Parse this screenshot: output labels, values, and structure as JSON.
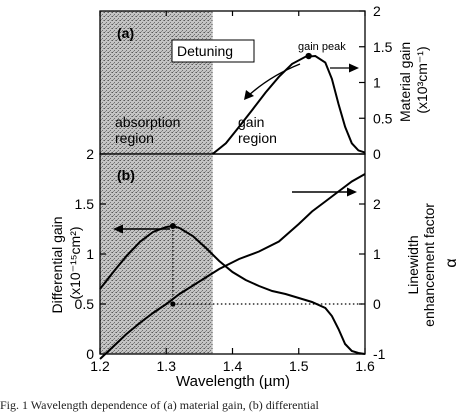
{
  "caption": "Fig. 1  Wavelength dependence of (a) material gain, (b) differential",
  "colors": {
    "line": "#000000",
    "shade": "#9a9a9a",
    "background": "#ffffff"
  },
  "chart_data": [
    {
      "panel": "(a)",
      "type": "line",
      "xlim": [
        1.2,
        1.6
      ],
      "ylim": [
        0,
        2
      ],
      "y_side": "right",
      "yticks": [
        "0",
        "0.5",
        "1",
        "1.5",
        "2"
      ],
      "ylabel_line1": "Material gain",
      "ylabel_line2": "(x10³cm⁻¹)",
      "shaded_region": {
        "x": [
          1.2,
          1.37
        ]
      },
      "series": [
        {
          "axis": "right",
          "x": [
            1.37,
            1.39,
            1.41,
            1.43,
            1.45,
            1.47,
            1.49,
            1.51,
            1.525,
            1.54,
            1.55,
            1.56,
            1.57,
            1.58,
            1.59,
            1.6
          ],
          "y": [
            0,
            0.15,
            0.38,
            0.62,
            0.86,
            1.08,
            1.26,
            1.36,
            1.37,
            1.28,
            1.05,
            0.7,
            0.38,
            0.15,
            0.05,
            0.02
          ]
        }
      ],
      "marker": {
        "x": 1.515,
        "y": 1.37
      },
      "annotations": {
        "panel_label": "(a)",
        "detuning": "Detuning",
        "gain_peak": "gain peak",
        "absorption": "absorption\nregion",
        "gain_region": "gain\nregion"
      }
    },
    {
      "panel": "(b)",
      "type": "line",
      "xlim": [
        1.2,
        1.6
      ],
      "xticks": [
        "1.2",
        "1.3",
        "1.4",
        "1.5",
        "1.6"
      ],
      "xlabel": "Wavelength (µm)",
      "ylim_left": [
        0,
        2
      ],
      "yticks_left": [
        "0",
        "0.5",
        "1",
        "1.5",
        "2"
      ],
      "ylabel_left_line1": "Differential gain",
      "ylabel_left_line2": "(x10⁻¹⁵cm²)",
      "ylim_right": [
        -1,
        3
      ],
      "yticks_right": [
        "-1",
        "0",
        "1",
        "2"
      ],
      "ylabel_right_line1": "Linewidth",
      "ylabel_right_line2": "enhancement factor",
      "ylabel_right_line3": "α",
      "shaded_region": {
        "x": [
          1.2,
          1.37
        ]
      },
      "series": [
        {
          "axis": "left",
          "x": [
            1.2,
            1.22,
            1.24,
            1.26,
            1.28,
            1.3,
            1.31,
            1.32,
            1.34,
            1.36,
            1.38,
            1.4,
            1.42,
            1.44,
            1.46,
            1.48,
            1.5,
            1.52,
            1.54,
            1.55,
            1.56,
            1.57,
            1.58,
            1.59,
            1.6
          ],
          "y": [
            0.65,
            0.82,
            0.98,
            1.12,
            1.22,
            1.27,
            1.28,
            1.26,
            1.18,
            1.06,
            0.93,
            0.82,
            0.74,
            0.68,
            0.63,
            0.6,
            0.56,
            0.52,
            0.46,
            0.38,
            0.25,
            0.1,
            0.03,
            0.01,
            0
          ]
        },
        {
          "axis": "right",
          "x": [
            1.2,
            1.22,
            1.24,
            1.26,
            1.28,
            1.3,
            1.32,
            1.35,
            1.38,
            1.41,
            1.44,
            1.47,
            1.5,
            1.52,
            1.54,
            1.56,
            1.58,
            1.6
          ],
          "y": [
            -1.1,
            -0.85,
            -0.6,
            -0.38,
            -0.18,
            0,
            0.2,
            0.45,
            0.7,
            0.9,
            1.05,
            1.25,
            1.6,
            1.85,
            2.05,
            2.25,
            2.45,
            2.6
          ]
        }
      ],
      "marker": {
        "x": 1.31,
        "y": 1.28
      },
      "reference_x": 1.31,
      "reference_alpha": 0
    }
  ]
}
